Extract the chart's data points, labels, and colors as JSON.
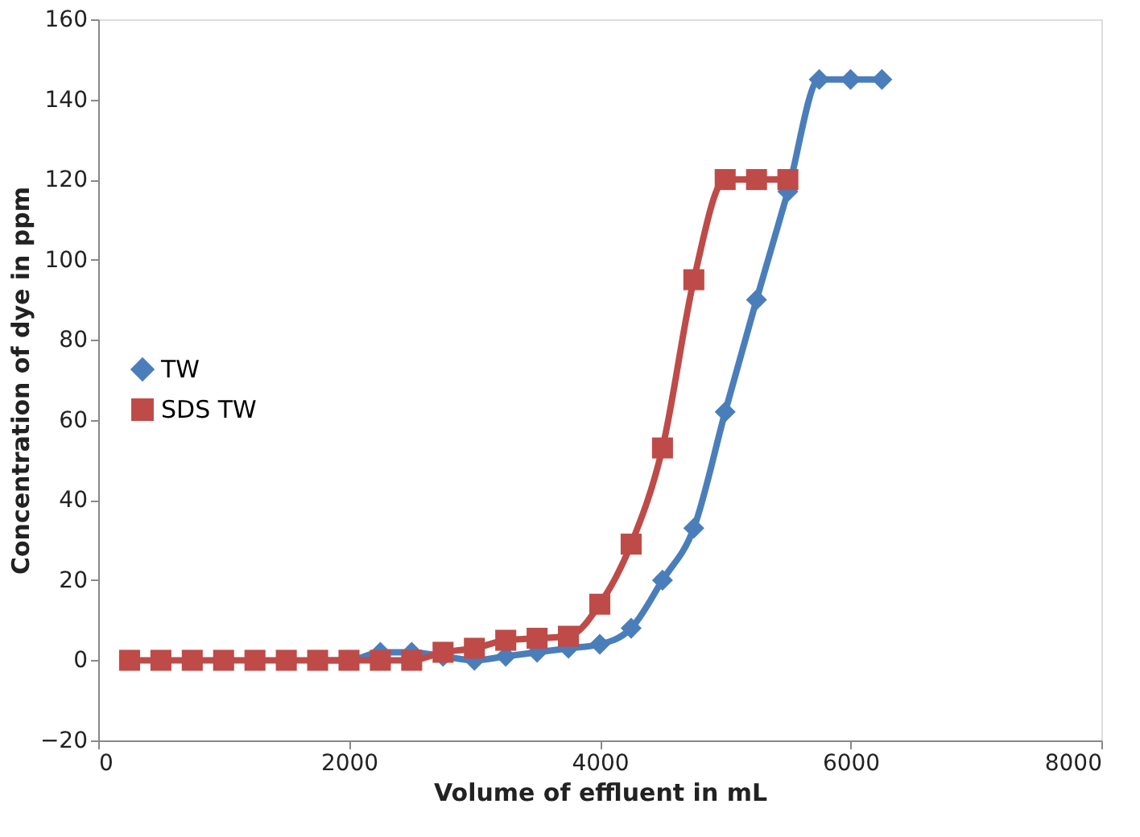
{
  "chart_data": {
    "type": "line",
    "xlabel": "Volume of effluent in mL",
    "ylabel": "Concentration of dye in ppm",
    "xlim": [
      0,
      8000
    ],
    "xticks": [
      0,
      2000,
      4000,
      6000,
      8000
    ],
    "ylim": [
      -20,
      160
    ],
    "yticks": [
      -20,
      0,
      20,
      40,
      60,
      80,
      100,
      120,
      140,
      160
    ],
    "grid": false,
    "legend": "left",
    "line_style": "solid",
    "series": [
      {
        "name": "TW",
        "color": "#4a7ebb",
        "marker": "diamond",
        "x": [
          1750,
          2000,
          2250,
          2500,
          2750,
          3000,
          3250,
          3500,
          3750,
          4000,
          4250,
          4500,
          4750,
          5000,
          5250,
          5500,
          5750,
          6000,
          6250
        ],
        "values": [
          0,
          0,
          2,
          2,
          1,
          0,
          1,
          2,
          3,
          4,
          8,
          20,
          33,
          62,
          90,
          117,
          145,
          145,
          145
        ]
      },
      {
        "name": "SDS TW",
        "color": "#be4b48",
        "marker": "square",
        "x": [
          250,
          500,
          750,
          1000,
          1250,
          1500,
          1750,
          2000,
          2250,
          2500,
          2750,
          3000,
          3250,
          3500,
          3750,
          4000,
          4250,
          4500,
          4750,
          5000,
          5250,
          5500
        ],
        "values": [
          0,
          0,
          0,
          0,
          0,
          0,
          0,
          0,
          0,
          0,
          2,
          3,
          5,
          5.5,
          6,
          14,
          29,
          53,
          95,
          120,
          120,
          120
        ]
      }
    ]
  }
}
